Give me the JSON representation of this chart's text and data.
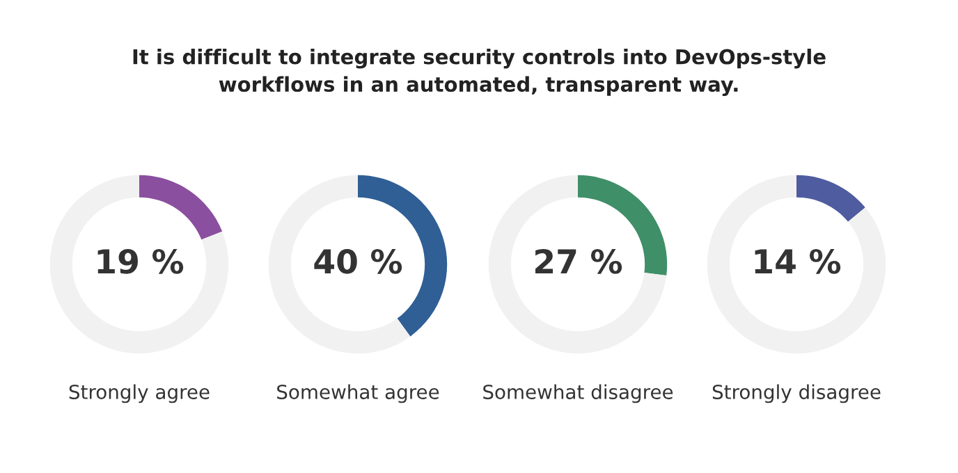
{
  "chart_data": [
    {
      "type": "donut",
      "title": "It is difficult to integrate security controls into DevOps-style\nworkflows in an automated, transparent way.",
      "xlabel": "Strongly agree",
      "categories": [
        null,
        null
      ],
      "values": [
        19,
        81
      ],
      "colors": [
        "#8b4f9f",
        "#f1f1f1"
      ],
      "value_labels": [
        "19 %",
        null
      ]
    },
    {
      "type": "donut",
      "xlabel": "Somewhat agree",
      "categories": [
        null,
        null
      ],
      "values": [
        40,
        60
      ],
      "colors": [
        "#2f5f95",
        "#f1f1f1"
      ],
      "value_labels": [
        "40 %",
        null
      ]
    },
    {
      "type": "donut",
      "xlabel": "Somewhat disagree",
      "categories": [
        null,
        null
      ],
      "values": [
        27,
        73
      ],
      "colors": [
        "#3f8f68",
        "#f1f1f1"
      ],
      "value_labels": [
        "27 %",
        null
      ]
    },
    {
      "type": "donut",
      "xlabel": "Strongly disagree",
      "categories": [
        null,
        null
      ],
      "values": [
        14,
        86
      ],
      "colors": [
        "#4f5c9f",
        "#f1f1f1"
      ],
      "value_labels": [
        "14 %",
        null
      ]
    }
  ]
}
